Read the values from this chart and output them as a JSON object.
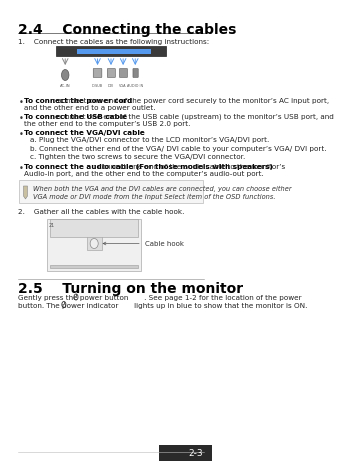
{
  "bg_color": "#ffffff",
  "page_num": "2-3",
  "section_title": "2.4    Connecting the cables",
  "step1_text": "1.    Connect the cables as the following instructions:",
  "bullet1_bold": "To connect the power cord",
  "bullet1_rest": ": connect one end of the power cord securely to the monitor’s AC input port, and the other end to a power outlet.",
  "bullet2_bold": "To connect the USB cable",
  "bullet2_rest": ": connect one end of the USB cable (upstream) to the monitor’s USB port, and the other end to the computer’s USB 2.0 port.",
  "bullet3_bold": "To connect the VGA/DVI cable",
  "bullet3_rest": ":",
  "sub_a": "a.   Plug the VGA/DVI connector to the LCD monitor’s VGA/DVI port.",
  "sub_b": "b.   Connect the other end of the VGA/ DVI cable to your computer’s VGA/ DVI port.",
  "sub_c": "c.   Tighten the two screws to secure the VGA/DVI connector.",
  "bullet4_bold": "To connect the audio cable (For those models with speakers)",
  "bullet4_rest": ": connect one end of the audio cable to the monitor’s Audio-in port, and the other end to the computer’s audio-out port.",
  "note_text": "When both the VGA and the DVI cables are connected, you can choose either\nVGA mode or DVI mode from the Input Select item of the OSD functions.",
  "step2_text": "2.    Gather all the cables with the cable hook.",
  "cable_hook_label": "Cable hook",
  "section2_title": "2.5    Turning on the monitor",
  "section2_line1": "Gently press the power button       . See page 1-2 for the location of the power",
  "section2_line2": "button. The power indicator       lights up in blue to show that the monitor is ON.",
  "footer_line_color": "#cccccc",
  "section_title_color": "#000000",
  "text_color": "#222222",
  "note_border_color": "#bbbbbb",
  "note_bg_color": "#f5f5f5"
}
